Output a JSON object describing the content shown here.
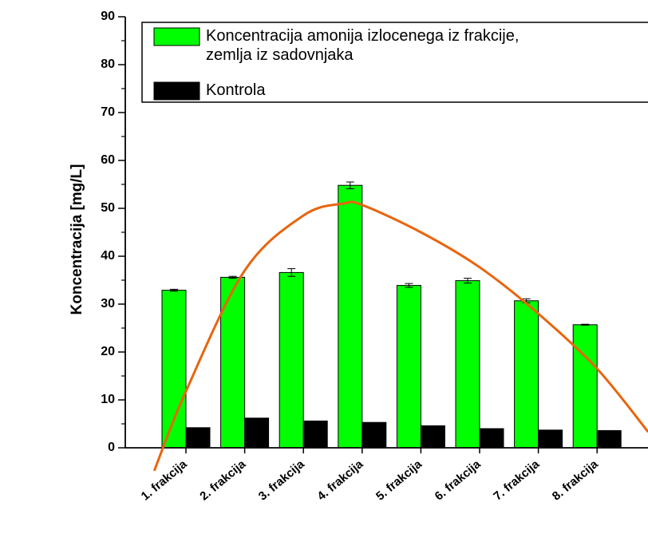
{
  "chart_data": {
    "type": "bar",
    "ylabel": "Koncentracija [mg/L]",
    "categories": [
      "1. frakcija",
      "2. frakcija",
      "3. frakcija",
      "4. frakcija",
      "5. frakcija",
      "6. frakcija",
      "7. frakcija",
      "8. frakcija"
    ],
    "series": [
      {
        "name": "Koncentracija amonija izlocenega iz frakcije,\nzemlja iz sadovnjaka",
        "color": "#00ff00",
        "values": [
          32.9,
          35.6,
          36.6,
          54.8,
          33.9,
          34.9,
          30.7,
          25.7
        ],
        "errors": [
          0.2,
          0.2,
          0.8,
          0.7,
          0.4,
          0.5,
          0.4,
          0.1
        ]
      },
      {
        "name": "Kontrola",
        "color": "#000000",
        "values": [
          4.2,
          6.2,
          5.6,
          5.3,
          4.6,
          4.0,
          3.7,
          3.6
        ]
      }
    ],
    "fit": {
      "color": "#e8650f",
      "x": [
        -0.54,
        0,
        1,
        2,
        2.68,
        3,
        4,
        5,
        6,
        7,
        7.87
      ],
      "values": [
        -4.8,
        11.8,
        37,
        48.5,
        51,
        50.7,
        45,
        37.7,
        28,
        16.5,
        3.3
      ]
    },
    "ylim": [
      0,
      90
    ],
    "yticks": [
      0,
      10,
      20,
      30,
      40,
      50,
      60,
      70,
      80,
      90
    ],
    "legend": "top"
  }
}
